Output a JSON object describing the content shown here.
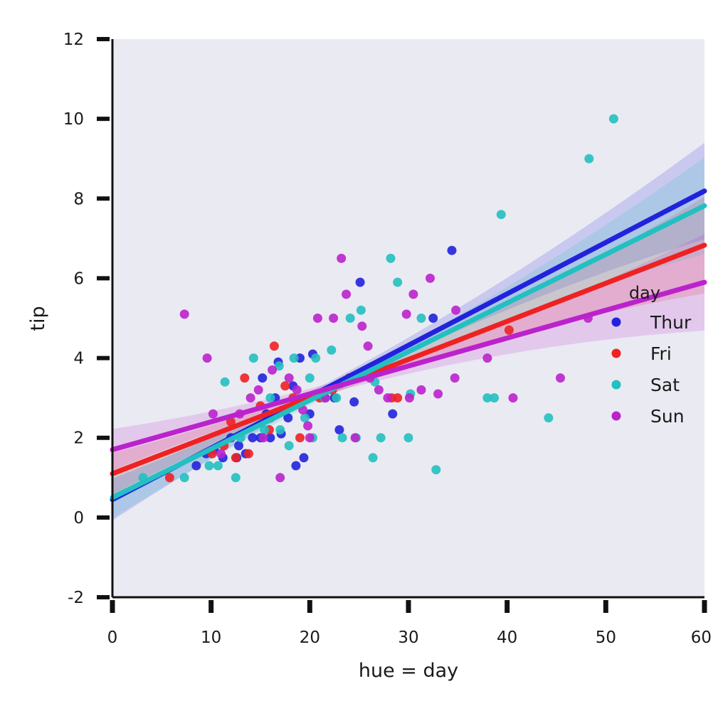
{
  "chart_data": {
    "type": "scatter",
    "title": "",
    "xlabel": "hue = day",
    "ylabel": "tip",
    "xlim": [
      0,
      60
    ],
    "ylim": [
      -2,
      12
    ],
    "xticks": [
      0,
      10,
      20,
      30,
      40,
      50,
      60
    ],
    "xtick_labels": [
      "0",
      "10",
      "20",
      "30",
      "40",
      "50",
      "60"
    ],
    "yticks": [
      -2,
      0,
      2,
      4,
      6,
      8,
      10,
      12
    ],
    "ytick_labels": [
      "-2",
      "0",
      "2",
      "4",
      "6",
      "8",
      "10",
      "12"
    ],
    "grid": false,
    "legend": {
      "title": "day",
      "placement": "right"
    },
    "series": [
      {
        "name": "Thur",
        "color": "#2222dd",
        "fit": {
          "intercept": 0.45,
          "slope": 0.129
        },
        "points": [
          [
            8.5,
            1.3
          ],
          [
            9.5,
            1.6
          ],
          [
            10.3,
            1.7
          ],
          [
            11.2,
            1.5
          ],
          [
            12.0,
            2.0
          ],
          [
            12.8,
            1.8
          ],
          [
            13.5,
            1.6
          ],
          [
            14.2,
            2.0
          ],
          [
            15.0,
            2.0
          ],
          [
            15.6,
            2.6
          ],
          [
            16.0,
            2.0
          ],
          [
            16.5,
            3.0
          ],
          [
            17.1,
            2.1
          ],
          [
            17.8,
            2.5
          ],
          [
            18.3,
            3.3
          ],
          [
            19.0,
            4.0
          ],
          [
            19.4,
            1.5
          ],
          [
            20.3,
            4.1
          ],
          [
            21.5,
            3.0
          ],
          [
            23.0,
            2.2
          ],
          [
            24.5,
            2.9
          ],
          [
            25.1,
            5.9
          ],
          [
            28.4,
            2.6
          ],
          [
            32.5,
            5.0
          ],
          [
            34.4,
            6.7
          ],
          [
            16.8,
            3.9
          ],
          [
            18.6,
            1.3
          ],
          [
            20.0,
            2.6
          ],
          [
            22.5,
            3.0
          ],
          [
            15.2,
            3.5
          ],
          [
            12.6,
            1.5
          ]
        ]
      },
      {
        "name": "Fri",
        "color": "#ee2222",
        "fit": {
          "intercept": 1.1,
          "slope": 0.0955
        },
        "points": [
          [
            5.8,
            1.0
          ],
          [
            10.1,
            1.6
          ],
          [
            12.5,
            1.5
          ],
          [
            13.4,
            3.5
          ],
          [
            15.0,
            2.8
          ],
          [
            16.4,
            4.3
          ],
          [
            18.3,
            3.0
          ],
          [
            21.0,
            3.0
          ],
          [
            24.0,
            3.5
          ],
          [
            28.9,
            3.0
          ],
          [
            40.2,
            4.7
          ],
          [
            12.0,
            2.4
          ],
          [
            19.0,
            2.0
          ],
          [
            22.3,
            3.2
          ],
          [
            15.9,
            2.2
          ],
          [
            28.3,
            3.0
          ],
          [
            13.8,
            1.6
          ],
          [
            17.5,
            3.3
          ],
          [
            11.3,
            1.8
          ]
        ]
      },
      {
        "name": "Sat",
        "color": "#22c0c0",
        "fit": {
          "intercept": 0.5,
          "slope": 0.122
        },
        "points": [
          [
            3.1,
            1.0
          ],
          [
            7.3,
            1.0
          ],
          [
            9.8,
            1.3
          ],
          [
            10.7,
            1.3
          ],
          [
            11.4,
            3.4
          ],
          [
            12.5,
            1.0
          ],
          [
            13.0,
            2.0
          ],
          [
            14.3,
            4.0
          ],
          [
            15.4,
            2.2
          ],
          [
            16.0,
            3.0
          ],
          [
            16.9,
            3.8
          ],
          [
            17.9,
            1.8
          ],
          [
            18.4,
            4.0
          ],
          [
            19.5,
            2.5
          ],
          [
            20.3,
            2.0
          ],
          [
            20.6,
            4.0
          ],
          [
            21.5,
            3.0
          ],
          [
            22.2,
            4.2
          ],
          [
            22.7,
            3.0
          ],
          [
            23.3,
            2.0
          ],
          [
            24.1,
            5.0
          ],
          [
            25.2,
            5.2
          ],
          [
            26.4,
            1.5
          ],
          [
            27.2,
            2.0
          ],
          [
            28.2,
            6.5
          ],
          [
            28.9,
            5.9
          ],
          [
            30.2,
            3.1
          ],
          [
            31.3,
            5.0
          ],
          [
            32.8,
            1.2
          ],
          [
            38.0,
            3.0
          ],
          [
            38.7,
            3.0
          ],
          [
            39.4,
            7.6
          ],
          [
            44.2,
            2.5
          ],
          [
            48.3,
            9.0
          ],
          [
            50.8,
            10.0
          ],
          [
            20.0,
            3.5
          ],
          [
            17.0,
            2.2
          ],
          [
            24.7,
            2.0
          ],
          [
            26.6,
            3.4
          ],
          [
            30.0,
            2.0
          ]
        ]
      },
      {
        "name": "Sun",
        "color": "#bb22cc",
        "fit": {
          "intercept": 1.7,
          "slope": 0.07
        },
        "points": [
          [
            7.3,
            5.1
          ],
          [
            9.6,
            4.0
          ],
          [
            10.2,
            2.6
          ],
          [
            11.0,
            1.6
          ],
          [
            12.9,
            2.6
          ],
          [
            14.0,
            3.0
          ],
          [
            14.8,
            3.2
          ],
          [
            15.3,
            2.0
          ],
          [
            16.2,
            3.7
          ],
          [
            17.0,
            1.0
          ],
          [
            17.9,
            3.5
          ],
          [
            18.7,
            3.2
          ],
          [
            19.3,
            2.7
          ],
          [
            20.0,
            2.0
          ],
          [
            20.8,
            5.0
          ],
          [
            22.4,
            5.0
          ],
          [
            23.2,
            6.5
          ],
          [
            23.7,
            5.6
          ],
          [
            24.6,
            2.0
          ],
          [
            25.3,
            4.8
          ],
          [
            25.9,
            4.3
          ],
          [
            27.0,
            3.2
          ],
          [
            27.9,
            3.0
          ],
          [
            29.8,
            5.1
          ],
          [
            30.5,
            5.6
          ],
          [
            31.3,
            3.2
          ],
          [
            32.2,
            6.0
          ],
          [
            33.0,
            3.1
          ],
          [
            34.7,
            3.5
          ],
          [
            34.8,
            5.2
          ],
          [
            38.0,
            4.0
          ],
          [
            40.6,
            3.0
          ],
          [
            45.4,
            3.5
          ],
          [
            48.2,
            5.0
          ],
          [
            16.0,
            2.5
          ],
          [
            21.6,
            3.0
          ],
          [
            19.8,
            2.3
          ],
          [
            26.1,
            3.5
          ],
          [
            30.1,
            3.0
          ]
        ]
      }
    ]
  }
}
